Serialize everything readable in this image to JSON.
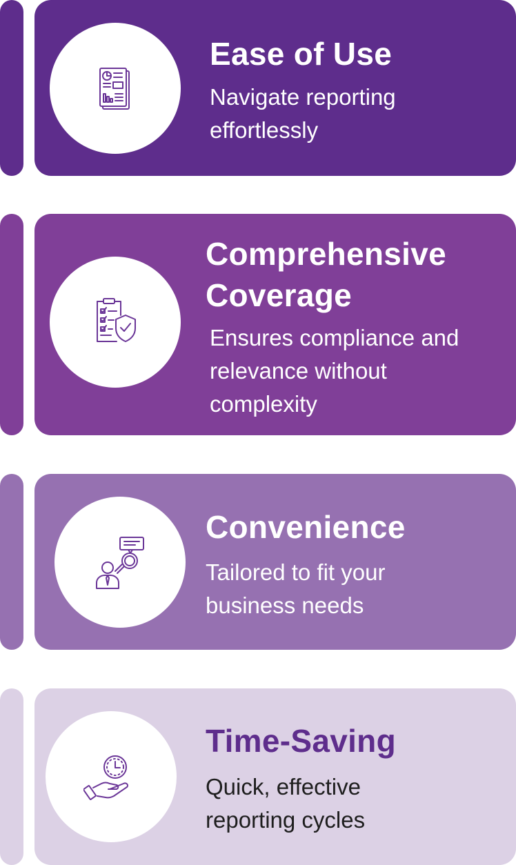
{
  "colors": {
    "card_1": "#5e2d8c",
    "card_2": "#803f98",
    "card_3": "#9671b1",
    "card_4": "#dcd1e5",
    "icon_stroke": "#6a3597",
    "title_dark": "#5e2d8c"
  },
  "features": [
    {
      "title": "Ease of Use",
      "desc_lines": [
        "Navigate reporting",
        "effortlessly"
      ],
      "icon": "report-document-icon"
    },
    {
      "title_lines": [
        "Comprehensive",
        "Coverage"
      ],
      "desc_lines": [
        "Ensures compliance and",
        "relevance without",
        "complexity"
      ],
      "icon": "compliance-shield-checklist-icon"
    },
    {
      "title": "Convenience",
      "desc_lines": [
        "Tailored to fit your",
        "business needs"
      ],
      "icon": "person-magnifier-icon"
    },
    {
      "title": "Time-Saving",
      "desc_lines": [
        "Quick, effective",
        "reporting cycles"
      ],
      "icon": "clock-in-hand-icon"
    }
  ]
}
